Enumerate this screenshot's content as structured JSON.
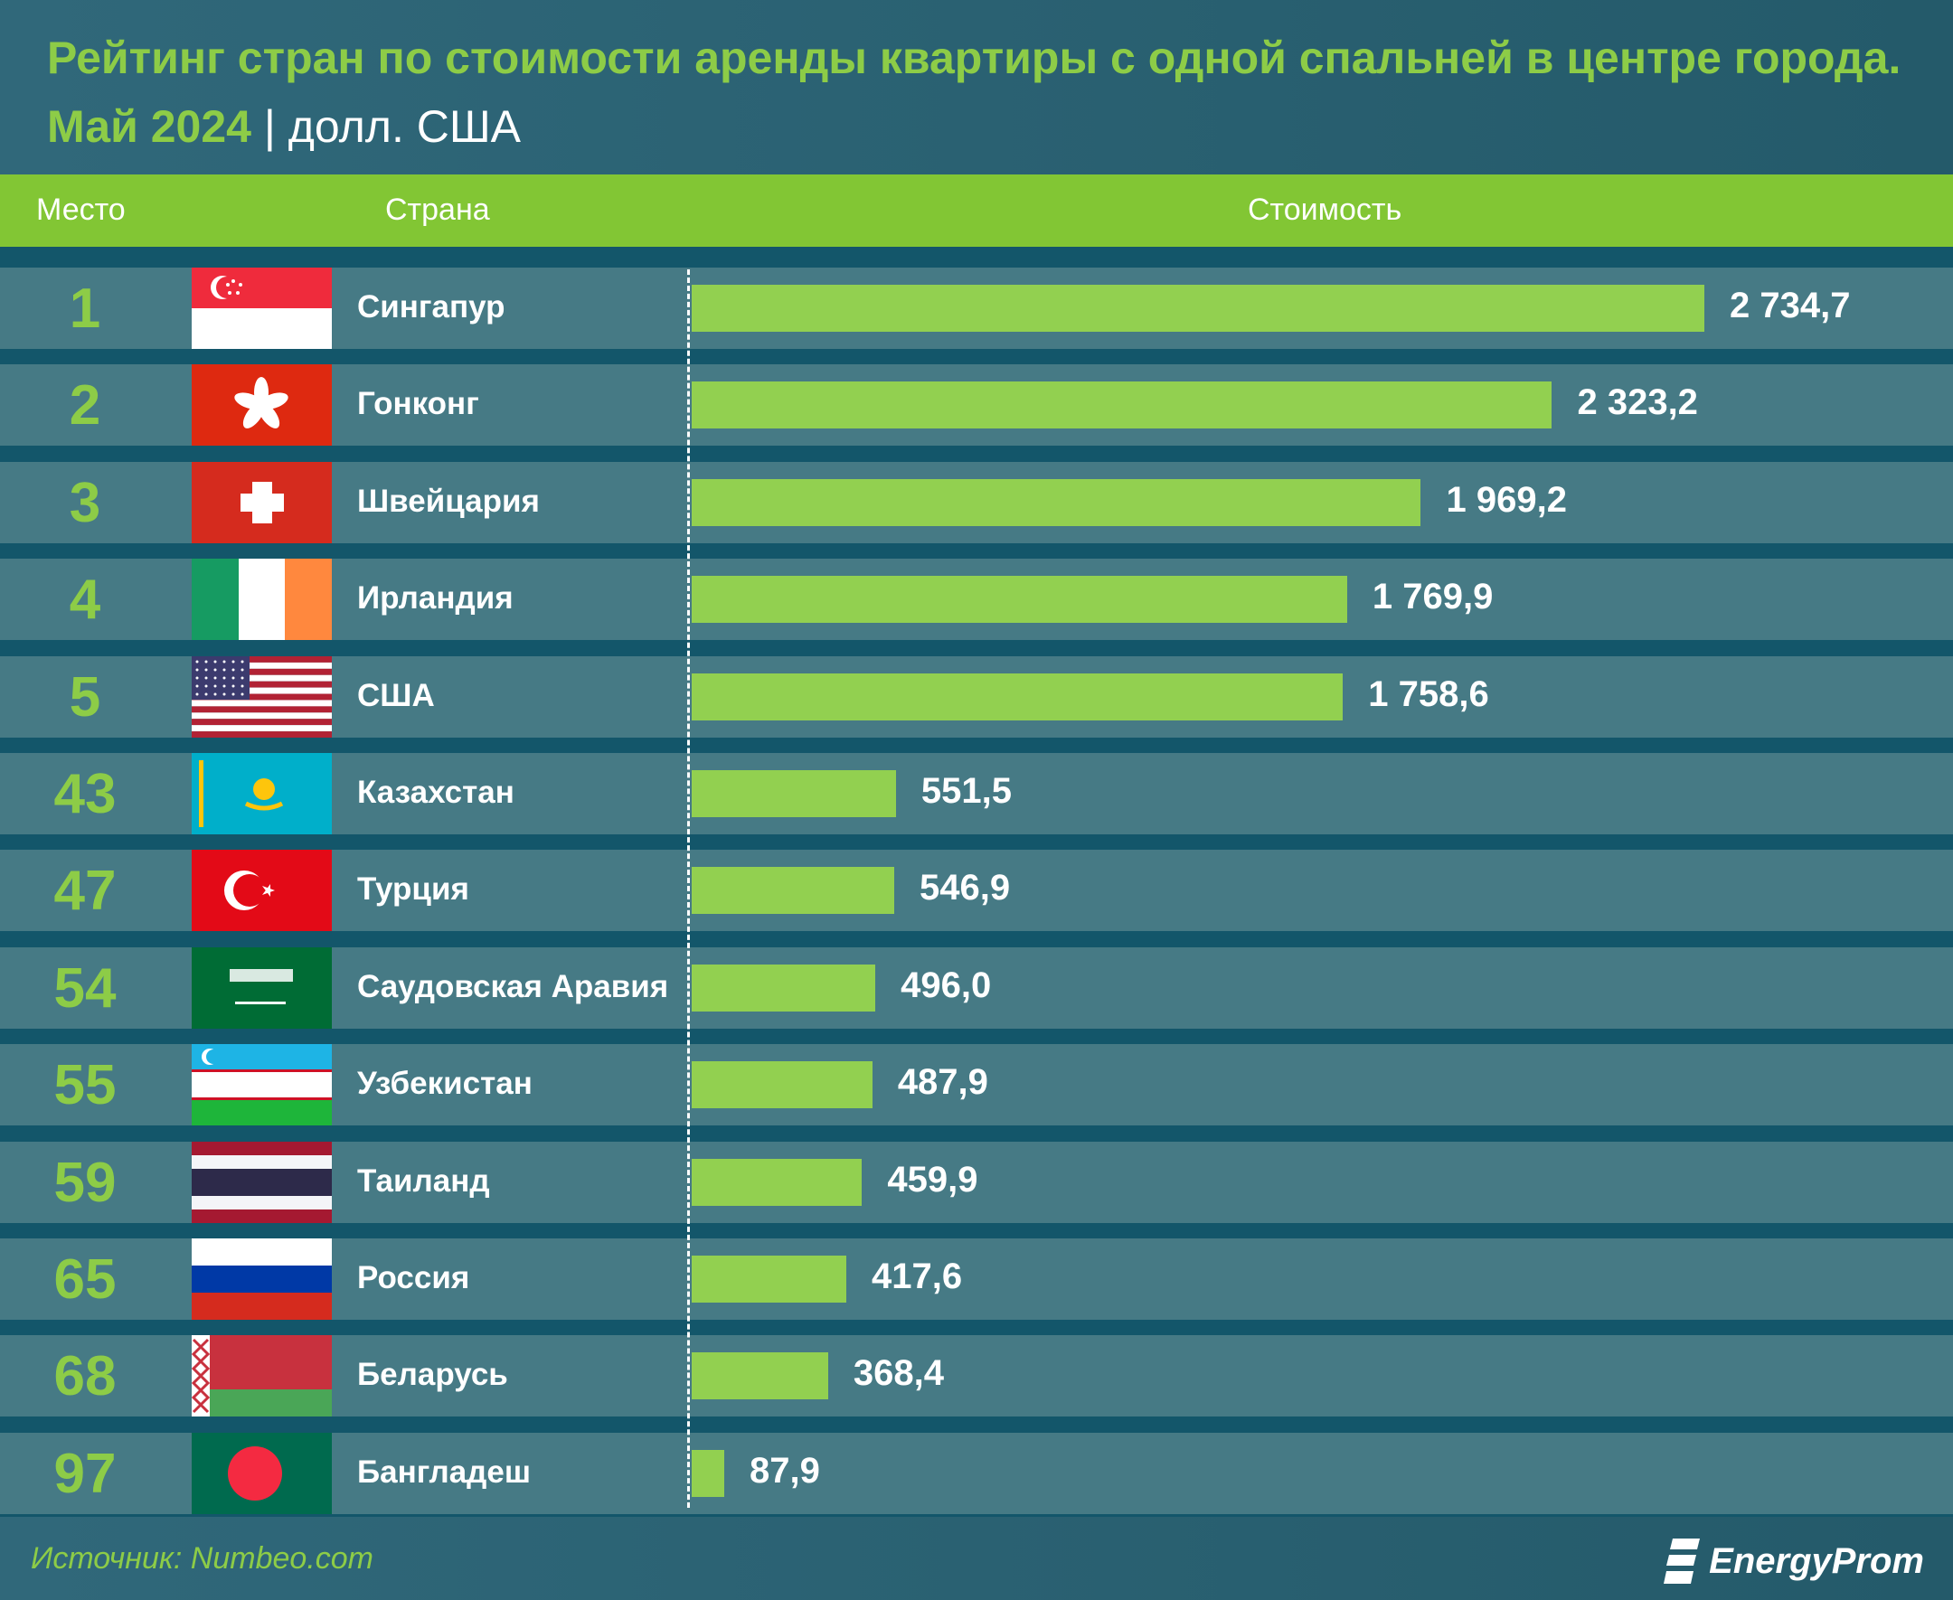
{
  "title": {
    "main": "Рейтинг стран по стоимости аренды квартиры с одной спальней в центре города. Май 2024",
    "unit": "| долл. США"
  },
  "header": {
    "rank": "Место",
    "country": "Страна",
    "value": "Стоимость"
  },
  "chart_data": {
    "type": "bar",
    "orientation": "horizontal",
    "title": "Рейтинг стран по стоимости аренды квартиры с одной спальней в центре города. Май 2024",
    "unit": "долл. США",
    "columns": [
      "Место",
      "Страна",
      "Стоимость"
    ],
    "rows": [
      {
        "rank": "1",
        "country": "Сингапур",
        "value": 2734.7,
        "label": "2 734,7",
        "flag": "singapore"
      },
      {
        "rank": "2",
        "country": "Гонконг",
        "value": 2323.2,
        "label": "2 323,2",
        "flag": "hong-kong"
      },
      {
        "rank": "3",
        "country": "Швейцария",
        "value": 1969.2,
        "label": "1 969,2",
        "flag": "switzerland"
      },
      {
        "rank": "4",
        "country": "Ирландия",
        "value": 1769.9,
        "label": "1 769,9",
        "flag": "ireland"
      },
      {
        "rank": "5",
        "country": "США",
        "value": 1758.6,
        "label": "1 758,6",
        "flag": "usa"
      },
      {
        "rank": "43",
        "country": "Казахстан",
        "value": 551.5,
        "label": "551,5",
        "flag": "kazakhstan"
      },
      {
        "rank": "47",
        "country": "Турция",
        "value": 546.9,
        "label": "546,9",
        "flag": "turkey"
      },
      {
        "rank": "54",
        "country": "Саудовская Аравия",
        "value": 496.0,
        "label": "496,0",
        "flag": "saudi-arabia"
      },
      {
        "rank": "55",
        "country": "Узбекистан",
        "value": 487.9,
        "label": "487,9",
        "flag": "uzbekistan"
      },
      {
        "rank": "59",
        "country": "Таиланд",
        "value": 459.9,
        "label": "459,9",
        "flag": "thailand"
      },
      {
        "rank": "65",
        "country": "Россия",
        "value": 417.6,
        "label": "417,6",
        "flag": "russia"
      },
      {
        "rank": "68",
        "country": "Беларусь",
        "value": 368.4,
        "label": "368,4",
        "flag": "belarus"
      },
      {
        "rank": "97",
        "country": "Бангладеш",
        "value": 87.9,
        "label": "87,9",
        "flag": "bangladesh"
      }
    ],
    "bar_color": "#92d050"
  },
  "footer": {
    "source": "Источник: Numbeo.com",
    "logo": "EnergyProm"
  }
}
